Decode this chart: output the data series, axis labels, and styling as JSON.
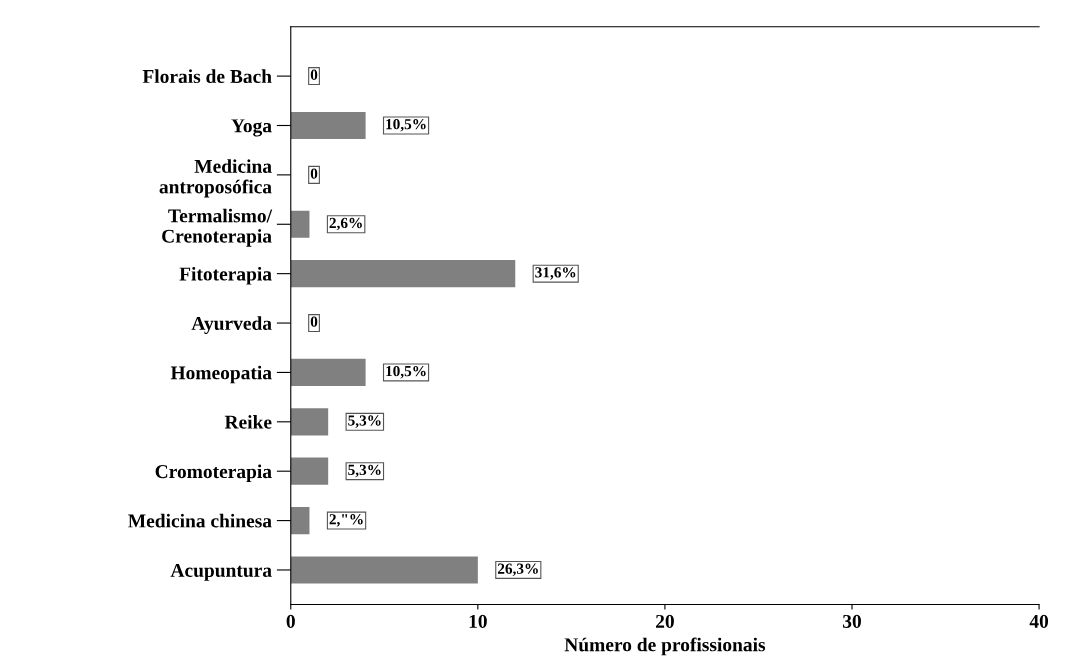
{
  "chart_data": {
    "type": "bar",
    "orientation": "horizontal",
    "xlabel": "Número de profissionais",
    "categories": [
      "Florais de Bach",
      "Yoga",
      "Medicina\nantroposófica",
      "Termalismo/\nCrenoterapia",
      "Fitoterapia",
      "Ayurveda",
      "Homeopatia",
      "Reike",
      "Cromoterapia",
      "Medicina chinesa",
      "Acupuntura"
    ],
    "values": [
      0,
      4,
      0,
      1,
      12,
      0,
      4,
      2,
      2,
      1,
      10
    ],
    "annotations": [
      {
        "text": "0",
        "x": 0,
        "y": "Florais de Bach"
      },
      {
        "text": "10,5%",
        "x": 4,
        "y": "Yoga"
      },
      {
        "text": "0",
        "x": 0,
        "y": "Medicina\nantroposófica"
      },
      {
        "text": "2,6%",
        "x": 1,
        "y": "Termalismo/\nCrenoterapia"
      },
      {
        "text": "31,6%",
        "x": 12,
        "y": "Fitoterapia"
      },
      {
        "text": "0",
        "x": 0,
        "y": "Ayurveda"
      },
      {
        "text": "10,5%",
        "x": 4,
        "y": "Homeopatia"
      },
      {
        "text": "5,3%",
        "x": 2,
        "y": "Reike"
      },
      {
        "text": "5,3%",
        "x": 2,
        "y": "Cromoterapia"
      },
      {
        "text": "2,\"%",
        "x": 1,
        "y": "Medicina chinesa"
      },
      {
        "text": "26,3%",
        "x": 10,
        "y": "Acupuntura"
      }
    ],
    "color": "#808080",
    "xlim": [
      0,
      40
    ],
    "xticks": [
      0,
      10,
      20,
      30,
      40
    ],
    "grid": false,
    "legend": false
  }
}
